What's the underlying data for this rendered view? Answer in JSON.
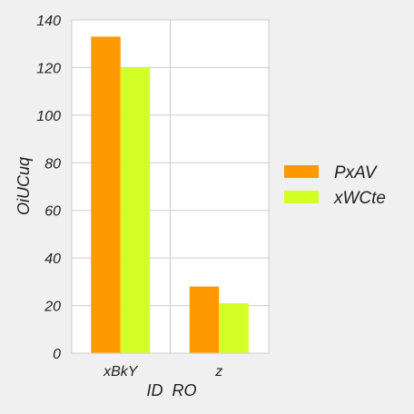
{
  "chart_data": {
    "type": "bar",
    "categories": [
      "xBkY",
      "z"
    ],
    "series": [
      {
        "name": "PxAV",
        "values": [
          133,
          28
        ],
        "color": "#ff9900"
      },
      {
        "name": "xWCte",
        "values": [
          120,
          21
        ],
        "color": "#d4ff26"
      }
    ],
    "xlabel": "ID  RO",
    "ylabel": "OiUCuq",
    "ylim": [
      0,
      140
    ],
    "yticks": [
      0,
      20,
      40,
      60,
      80,
      100,
      120,
      140
    ],
    "grid": true,
    "legend_position": "right",
    "colors": {
      "background": "#f0f0f0",
      "plot_background": "#ffffff",
      "grid": "#cccccc",
      "text": "#222222"
    }
  }
}
